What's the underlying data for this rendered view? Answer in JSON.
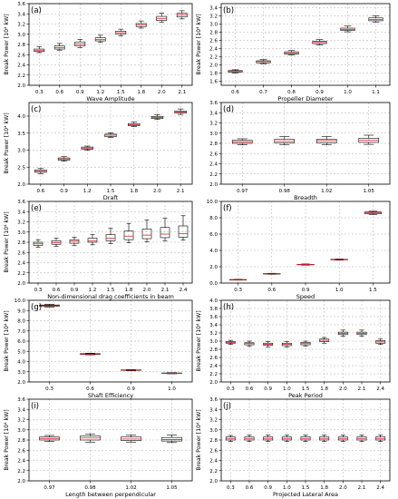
{
  "y_label": "Break Power [10⁴ kW]",
  "colors": {
    "box": "#000000",
    "median": "#d62728",
    "grid": "#b0b0b0"
  },
  "chart_data": [
    {
      "panel": "(a)",
      "type": "box",
      "xlabel": "Wave Amplitude",
      "ylabel": "Break Power [10⁴ kW]",
      "ylim": [
        2.0,
        3.6
      ],
      "yticks": [
        "2.0",
        "2.2",
        "2.4",
        "2.6",
        "2.8",
        "3.0",
        "3.2",
        "3.4",
        "3.6"
      ],
      "grid": true,
      "categories": [
        "0.3",
        "0.6",
        "0.9",
        "1.2",
        "1.5",
        "1.8",
        "2.0",
        "2.1"
      ],
      "boxes": [
        {
          "whislo": 2.64,
          "q1": 2.66,
          "med": 2.68,
          "q3": 2.71,
          "whishi": 2.76
        },
        {
          "whislo": 2.69,
          "q1": 2.71,
          "med": 2.74,
          "q3": 2.77,
          "whishi": 2.82
        },
        {
          "whislo": 2.74,
          "q1": 2.77,
          "med": 2.81,
          "q3": 2.85,
          "whishi": 2.9
        },
        {
          "whislo": 2.84,
          "q1": 2.87,
          "med": 2.9,
          "q3": 2.93,
          "whishi": 2.98
        },
        {
          "whislo": 2.97,
          "q1": 3.0,
          "med": 3.03,
          "q3": 3.06,
          "whishi": 3.1
        },
        {
          "whislo": 3.12,
          "q1": 3.15,
          "med": 3.18,
          "q3": 3.21,
          "whishi": 3.26
        },
        {
          "whislo": 3.24,
          "q1": 3.27,
          "med": 3.31,
          "q3": 3.35,
          "whishi": 3.41
        },
        {
          "whislo": 3.3,
          "q1": 3.34,
          "med": 3.38,
          "q3": 3.41,
          "whishi": 3.46
        }
      ]
    },
    {
      "panel": "(b)",
      "type": "box",
      "xlabel": "Propeller Diameter",
      "ylabel": "Break Power [10⁴ kW]",
      "ylim": [
        1.5,
        3.5
      ],
      "yticks": [
        "1.6",
        "1.8",
        "2.0",
        "2.2",
        "2.4",
        "2.6",
        "2.8",
        "3.0",
        "3.2",
        "3.4"
      ],
      "grid": true,
      "categories": [
        "0.6",
        "0.7",
        "0.8",
        "0.9",
        "1.0",
        "1.1"
      ],
      "boxes": [
        {
          "whislo": 1.8,
          "q1": 1.82,
          "med": 1.84,
          "q3": 1.86,
          "whishi": 1.88
        },
        {
          "whislo": 2.03,
          "q1": 2.05,
          "med": 2.08,
          "q3": 2.1,
          "whishi": 2.13
        },
        {
          "whislo": 2.24,
          "q1": 2.26,
          "med": 2.29,
          "q3": 2.32,
          "whishi": 2.35
        },
        {
          "whislo": 2.49,
          "q1": 2.52,
          "med": 2.55,
          "q3": 2.58,
          "whishi": 2.62
        },
        {
          "whislo": 2.81,
          "q1": 2.84,
          "med": 2.87,
          "q3": 2.9,
          "whishi": 2.95
        },
        {
          "whislo": 3.05,
          "q1": 3.08,
          "med": 3.11,
          "q3": 3.15,
          "whishi": 3.2
        }
      ]
    },
    {
      "panel": "(c)",
      "type": "box",
      "xlabel": "Draft",
      "ylabel": "Break Power [10⁴ kW]",
      "ylim": [
        2.0,
        4.4
      ],
      "yticks": [
        "2.0",
        "2.5",
        "3.0",
        "3.5",
        "4.0"
      ],
      "grid": true,
      "categories": [
        "0.6",
        "0.9",
        "1.2",
        "1.5",
        "1.8",
        "2.0",
        "2.1"
      ],
      "boxes": [
        {
          "whislo": 2.31,
          "q1": 2.35,
          "med": 2.38,
          "q3": 2.42,
          "whishi": 2.46
        },
        {
          "whislo": 2.68,
          "q1": 2.71,
          "med": 2.74,
          "q3": 2.77,
          "whishi": 2.81
        },
        {
          "whislo": 3.0,
          "q1": 3.03,
          "med": 3.06,
          "q3": 3.09,
          "whishi": 3.12
        },
        {
          "whislo": 3.37,
          "q1": 3.4,
          "med": 3.44,
          "q3": 3.47,
          "whishi": 3.51
        },
        {
          "whislo": 3.69,
          "q1": 3.72,
          "med": 3.75,
          "q3": 3.78,
          "whishi": 3.82
        },
        {
          "whislo": 3.9,
          "q1": 3.93,
          "med": 3.96,
          "q3": 3.99,
          "whishi": 4.04
        },
        {
          "whislo": 4.05,
          "q1": 4.09,
          "med": 4.12,
          "q3": 4.15,
          "whishi": 4.21
        }
      ]
    },
    {
      "panel": "(d)",
      "type": "box",
      "xlabel": "Breadth",
      "ylabel": "",
      "ylim": [
        2.0,
        3.6
      ],
      "yticks": [
        "2.0",
        "2.2",
        "2.4",
        "2.6",
        "2.8",
        "3.0",
        "3.2",
        "3.4",
        "3.6"
      ],
      "grid": true,
      "categories": [
        "0.97",
        "0.98",
        "1.02",
        "1.05"
      ],
      "boxes": [
        {
          "whislo": 2.77,
          "q1": 2.8,
          "med": 2.83,
          "q3": 2.86,
          "whishi": 2.89
        },
        {
          "whislo": 2.77,
          "q1": 2.81,
          "med": 2.84,
          "q3": 2.88,
          "whishi": 2.93
        },
        {
          "whislo": 2.77,
          "q1": 2.81,
          "med": 2.85,
          "q3": 2.88,
          "whishi": 2.93
        },
        {
          "whislo": 2.78,
          "q1": 2.82,
          "med": 2.86,
          "q3": 2.9,
          "whishi": 2.96
        }
      ]
    },
    {
      "panel": "(e)",
      "type": "box",
      "xlabel": "Non-dimensional drag coefficients in beam",
      "ylabel": "Break Power [10⁴ kW]",
      "ylim": [
        2.0,
        3.6
      ],
      "yticks": [
        "2.0",
        "2.2",
        "2.4",
        "2.6",
        "2.8",
        "3.0",
        "3.2",
        "3.4",
        "3.6"
      ],
      "grid": true,
      "categories": [
        "0.3",
        "0.6",
        "0.9",
        "1.2",
        "1.5",
        "1.8",
        "2.0",
        "2.1",
        "2.4"
      ],
      "boxes": [
        {
          "whislo": 2.7,
          "q1": 2.74,
          "med": 2.77,
          "q3": 2.8,
          "whishi": 2.85
        },
        {
          "whislo": 2.72,
          "q1": 2.76,
          "med": 2.79,
          "q3": 2.83,
          "whishi": 2.88
        },
        {
          "whislo": 2.74,
          "q1": 2.78,
          "med": 2.82,
          "q3": 2.85,
          "whishi": 2.9
        },
        {
          "whislo": 2.75,
          "q1": 2.8,
          "med": 2.83,
          "q3": 2.88,
          "whishi": 2.95
        },
        {
          "whislo": 2.77,
          "q1": 2.83,
          "med": 2.88,
          "q3": 2.95,
          "whishi": 3.07
        },
        {
          "whislo": 2.79,
          "q1": 2.85,
          "med": 2.92,
          "q3": 3.02,
          "whishi": 3.17
        },
        {
          "whislo": 2.81,
          "q1": 2.87,
          "med": 2.94,
          "q3": 3.06,
          "whishi": 3.24
        },
        {
          "whislo": 2.83,
          "q1": 2.89,
          "med": 2.96,
          "q3": 3.09,
          "whishi": 3.27
        },
        {
          "whislo": 2.84,
          "q1": 2.9,
          "med": 2.97,
          "q3": 3.12,
          "whishi": 3.32
        }
      ]
    },
    {
      "panel": "(f)",
      "type": "box",
      "xlabel": "Speed",
      "ylabel": "",
      "ylim": [
        0.0,
        10.0
      ],
      "yticks": [
        "0.0",
        "2.0",
        "4.0",
        "6.0",
        "8.0",
        "10.0"
      ],
      "grid": true,
      "categories": [
        "0.3",
        "0.6",
        "0.9",
        "1.0",
        "1.5"
      ],
      "boxes": [
        {
          "whislo": 0.36,
          "q1": 0.39,
          "med": 0.41,
          "q3": 0.43,
          "whishi": 0.46
        },
        {
          "whislo": 1.08,
          "q1": 1.11,
          "med": 1.14,
          "q3": 1.17,
          "whishi": 1.2
        },
        {
          "whislo": 2.2,
          "q1": 2.24,
          "med": 2.27,
          "q3": 2.3,
          "whishi": 2.34
        },
        {
          "whislo": 2.8,
          "q1": 2.84,
          "med": 2.87,
          "q3": 2.91,
          "whishi": 2.95
        },
        {
          "whislo": 8.4,
          "q1": 8.5,
          "med": 8.6,
          "q3": 8.7,
          "whishi": 8.8
        }
      ]
    },
    {
      "panel": "(g)",
      "type": "box",
      "xlabel": "Shaft Efficiency",
      "ylabel": "Break Power [10⁴ kW]",
      "ylim": [
        2.0,
        10.0
      ],
      "yticks": [
        "2.0",
        "3.0",
        "4.0",
        "5.0",
        "6.0",
        "7.0",
        "8.0",
        "9.0",
        "10.0"
      ],
      "grid": true,
      "categories": [
        "0.3",
        "0.6",
        "0.9",
        "1.0"
      ],
      "boxes": [
        {
          "whislo": 9.35,
          "q1": 9.42,
          "med": 9.48,
          "q3": 9.54,
          "whishi": 9.62
        },
        {
          "whislo": 4.66,
          "q1": 4.7,
          "med": 4.74,
          "q3": 4.78,
          "whishi": 4.82
        },
        {
          "whislo": 3.1,
          "q1": 3.13,
          "med": 3.16,
          "q3": 3.19,
          "whishi": 3.22
        },
        {
          "whislo": 2.8,
          "q1": 2.83,
          "med": 2.85,
          "q3": 2.88,
          "whishi": 2.91
        }
      ]
    },
    {
      "panel": "(h)",
      "type": "box",
      "xlabel": "Peak Period",
      "ylabel": "Break Power [10⁴ kW]",
      "ylim": [
        2.0,
        4.0
      ],
      "yticks": [
        "2.0",
        "2.2",
        "2.4",
        "2.6",
        "2.8",
        "3.0",
        "3.2",
        "3.4",
        "3.6",
        "3.8",
        "4.0"
      ],
      "grid": true,
      "categories": [
        "0.3",
        "0.6",
        "0.9",
        "1.0",
        "1.5",
        "1.8",
        "2.0",
        "2.1",
        "2.4"
      ],
      "boxes": [
        {
          "whislo": 2.92,
          "q1": 2.95,
          "med": 2.97,
          "q3": 2.99,
          "whishi": 3.02
        },
        {
          "whislo": 2.87,
          "q1": 2.91,
          "med": 2.94,
          "q3": 2.96,
          "whishi": 3.0
        },
        {
          "whislo": 2.86,
          "q1": 2.9,
          "med": 2.92,
          "q3": 2.95,
          "whishi": 2.99
        },
        {
          "whislo": 2.86,
          "q1": 2.89,
          "med": 2.92,
          "q3": 2.95,
          "whishi": 2.99
        },
        {
          "whislo": 2.88,
          "q1": 2.91,
          "med": 2.94,
          "q3": 2.97,
          "whishi": 3.0
        },
        {
          "whislo": 2.95,
          "q1": 2.99,
          "med": 3.02,
          "q3": 3.05,
          "whishi": 3.09
        },
        {
          "whislo": 3.12,
          "q1": 3.16,
          "med": 3.19,
          "q3": 3.22,
          "whishi": 3.27
        },
        {
          "whislo": 3.12,
          "q1": 3.16,
          "med": 3.19,
          "q3": 3.22,
          "whishi": 3.27
        },
        {
          "whislo": 2.92,
          "q1": 2.95,
          "med": 2.98,
          "q3": 3.01,
          "whishi": 3.05
        }
      ]
    },
    {
      "panel": "(i)",
      "type": "box",
      "xlabel": "Length between perpendicular",
      "ylabel": "Break Power [10⁴ kW]",
      "ylim": [
        2.0,
        3.6
      ],
      "yticks": [
        "2.0",
        "2.2",
        "2.4",
        "2.6",
        "2.8",
        "3.0",
        "3.2",
        "3.4",
        "3.6"
      ],
      "grid": true,
      "categories": [
        "0.97",
        "0.98",
        "1.02",
        "1.05"
      ],
      "boxes": [
        {
          "whislo": 2.77,
          "q1": 2.8,
          "med": 2.83,
          "q3": 2.86,
          "whishi": 2.89
        },
        {
          "whislo": 2.76,
          "q1": 2.8,
          "med": 2.84,
          "q3": 2.88,
          "whishi": 2.92
        },
        {
          "whislo": 2.76,
          "q1": 2.79,
          "med": 2.82,
          "q3": 2.86,
          "whishi": 2.9
        },
        {
          "whislo": 2.75,
          "q1": 2.78,
          "med": 2.81,
          "q3": 2.85,
          "whishi": 2.9
        }
      ]
    },
    {
      "panel": "(j)",
      "type": "box",
      "xlabel": "Projected Lateral Area",
      "ylabel": "Break Power [10⁴ kW]",
      "ylim": [
        2.0,
        3.6
      ],
      "yticks": [
        "2.0",
        "2.2",
        "2.4",
        "2.6",
        "2.8",
        "3.0",
        "3.2",
        "3.4",
        "3.6"
      ],
      "grid": true,
      "categories": [
        "0.3",
        "0.6",
        "0.9",
        "1.0",
        "1.5",
        "1.8",
        "2.0",
        "2.1",
        "2.4"
      ],
      "boxes": [
        {
          "whislo": 2.77,
          "q1": 2.8,
          "med": 2.83,
          "q3": 2.86,
          "whishi": 2.89
        },
        {
          "whislo": 2.77,
          "q1": 2.8,
          "med": 2.83,
          "q3": 2.86,
          "whishi": 2.9
        },
        {
          "whislo": 2.77,
          "q1": 2.8,
          "med": 2.83,
          "q3": 2.86,
          "whishi": 2.9
        },
        {
          "whislo": 2.77,
          "q1": 2.8,
          "med": 2.83,
          "q3": 2.86,
          "whishi": 2.9
        },
        {
          "whislo": 2.77,
          "q1": 2.8,
          "med": 2.83,
          "q3": 2.86,
          "whishi": 2.9
        },
        {
          "whislo": 2.77,
          "q1": 2.8,
          "med": 2.83,
          "q3": 2.86,
          "whishi": 2.9
        },
        {
          "whislo": 2.77,
          "q1": 2.8,
          "med": 2.83,
          "q3": 2.86,
          "whishi": 2.9
        },
        {
          "whislo": 2.77,
          "q1": 2.8,
          "med": 2.83,
          "q3": 2.86,
          "whishi": 2.9
        },
        {
          "whislo": 2.77,
          "q1": 2.8,
          "med": 2.83,
          "q3": 2.86,
          "whishi": 2.9
        }
      ]
    }
  ]
}
